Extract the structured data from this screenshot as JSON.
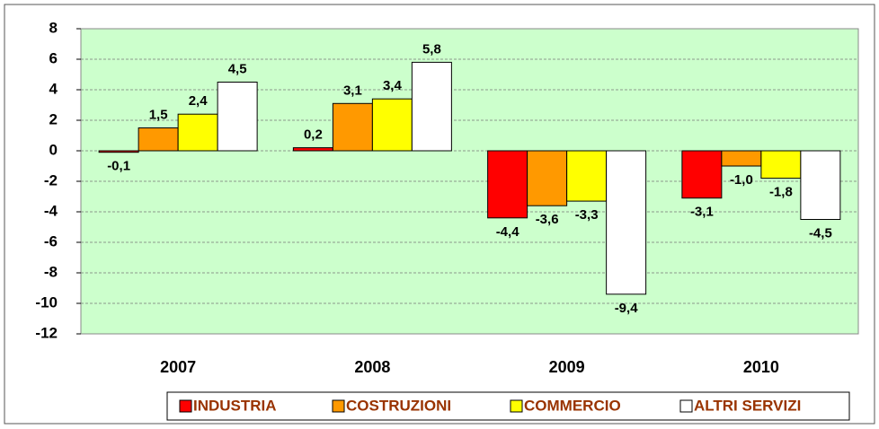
{
  "chart_data": {
    "type": "bar",
    "categories": [
      "2007",
      "2008",
      "2009",
      "2010"
    ],
    "series": [
      {
        "name": "INDUSTRIA",
        "color": "#ff0000",
        "values": [
          -0.1,
          0.2,
          -4.4,
          -3.1
        ],
        "value_labels": [
          "-0,1",
          "0,2",
          "-4,4",
          "-3,1"
        ]
      },
      {
        "name": "COSTRUZIONI",
        "color": "#ff9900",
        "values": [
          1.5,
          3.1,
          -3.6,
          -1.0
        ],
        "value_labels": [
          "1,5",
          "3,1",
          "-3,6",
          "-1,0"
        ]
      },
      {
        "name": "COMMERCIO",
        "color": "#ffff00",
        "values": [
          2.4,
          3.4,
          -3.3,
          -1.8
        ],
        "value_labels": [
          "2,4",
          "3,4",
          "-3,3",
          "-1,8"
        ]
      },
      {
        "name": "ALTRI SERVIZI",
        "color": "#ffffff",
        "values": [
          4.5,
          5.8,
          -9.4,
          -4.5
        ],
        "value_labels": [
          "4,5",
          "5,8",
          "-9,4",
          "-4,5"
        ]
      }
    ],
    "ylim": [
      -12,
      8
    ],
    "yticks": [
      -12,
      -10,
      -8,
      -6,
      -4,
      -2,
      0,
      2,
      4,
      6,
      8
    ],
    "grid": true,
    "legend": "bottom"
  }
}
